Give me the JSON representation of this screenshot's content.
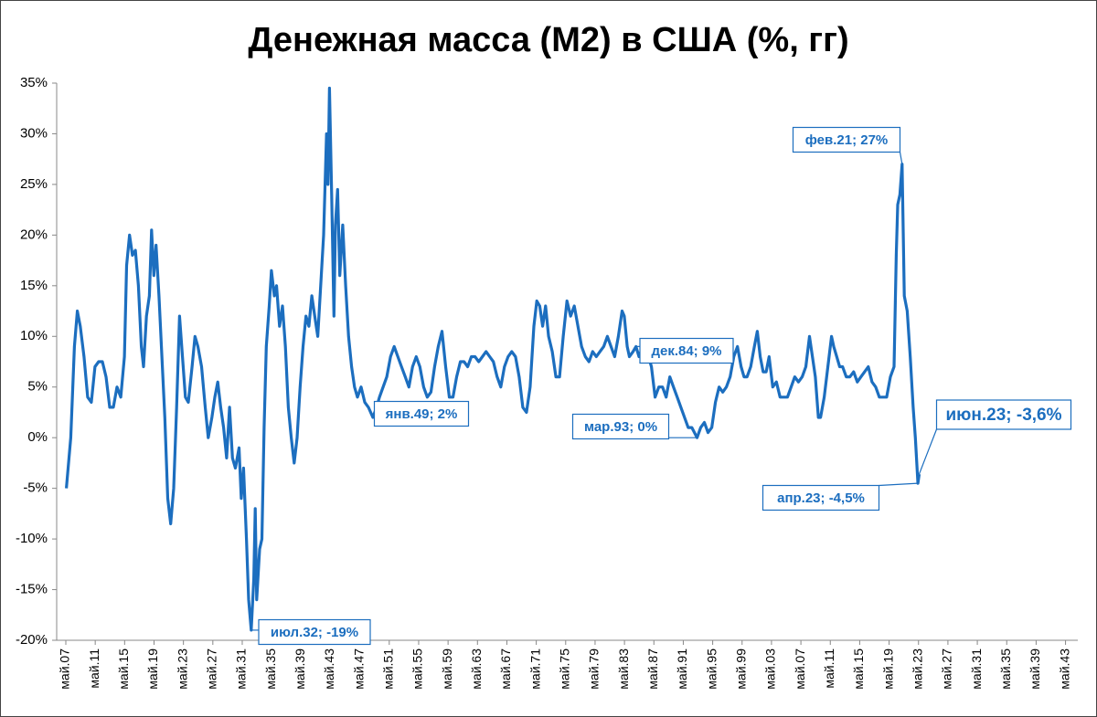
{
  "chart_data": {
    "type": "line",
    "title": "Денежная масса (М2) в США (%, гг)",
    "color": "#1c6ebf",
    "xlim": [
      1907.33,
      2045
    ],
    "ylim": [
      -20,
      35
    ],
    "yticks": [
      {
        "value": 35,
        "label": "35%"
      },
      {
        "value": 30,
        "label": "30%"
      },
      {
        "value": 25,
        "label": "25%"
      },
      {
        "value": 20,
        "label": "20%"
      },
      {
        "value": 15,
        "label": "15%"
      },
      {
        "value": 10,
        "label": "10%"
      },
      {
        "value": 5,
        "label": "5%"
      },
      {
        "value": 0,
        "label": "0%"
      },
      {
        "value": -5,
        "label": "-5%"
      },
      {
        "value": -10,
        "label": "-10%"
      },
      {
        "value": -15,
        "label": "-15%"
      },
      {
        "value": -20,
        "label": "-20%"
      }
    ],
    "xticks": [
      {
        "value": 1907.33,
        "label": "май.07"
      },
      {
        "value": 1911.33,
        "label": "май.11"
      },
      {
        "value": 1915.33,
        "label": "май.15"
      },
      {
        "value": 1919.33,
        "label": "май.19"
      },
      {
        "value": 1923.33,
        "label": "май.23"
      },
      {
        "value": 1927.33,
        "label": "май.27"
      },
      {
        "value": 1931.33,
        "label": "май.31"
      },
      {
        "value": 1935.33,
        "label": "май.35"
      },
      {
        "value": 1939.33,
        "label": "май.39"
      },
      {
        "value": 1943.33,
        "label": "май.43"
      },
      {
        "value": 1947.33,
        "label": "май.47"
      },
      {
        "value": 1951.33,
        "label": "май.51"
      },
      {
        "value": 1955.33,
        "label": "май.55"
      },
      {
        "value": 1959.33,
        "label": "май.59"
      },
      {
        "value": 1963.33,
        "label": "май.63"
      },
      {
        "value": 1967.33,
        "label": "май.67"
      },
      {
        "value": 1971.33,
        "label": "май.71"
      },
      {
        "value": 1975.33,
        "label": "май.75"
      },
      {
        "value": 1979.33,
        "label": "май.79"
      },
      {
        "value": 1983.33,
        "label": "май.83"
      },
      {
        "value": 1987.33,
        "label": "май.87"
      },
      {
        "value": 1991.33,
        "label": "май.91"
      },
      {
        "value": 1995.33,
        "label": "май.95"
      },
      {
        "value": 1999.33,
        "label": "май.99"
      },
      {
        "value": 2003.33,
        "label": "май.03"
      },
      {
        "value": 2007.33,
        "label": "май.07"
      },
      {
        "value": 2011.33,
        "label": "май.11"
      },
      {
        "value": 2015.33,
        "label": "май.15"
      },
      {
        "value": 2019.33,
        "label": "май.19"
      },
      {
        "value": 2023.33,
        "label": "май.23"
      },
      {
        "value": 2027.33,
        "label": "май.27"
      },
      {
        "value": 2031.33,
        "label": "май.31"
      },
      {
        "value": 2035.33,
        "label": "май.35"
      },
      {
        "value": 2039.33,
        "label": "май.39"
      },
      {
        "value": 2043.33,
        "label": "май.43"
      }
    ],
    "x": [
      1907.4,
      1908.0,
      1908.5,
      1908.9,
      1909.3,
      1909.8,
      1910.3,
      1910.8,
      1911.3,
      1911.8,
      1912.3,
      1912.8,
      1913.3,
      1913.8,
      1914.3,
      1914.8,
      1915.3,
      1915.6,
      1916.0,
      1916.4,
      1916.8,
      1917.2,
      1917.6,
      1917.9,
      1918.3,
      1918.7,
      1919.0,
      1919.3,
      1919.6,
      1920.0,
      1920.4,
      1920.8,
      1921.2,
      1921.6,
      1922.0,
      1922.4,
      1922.8,
      1923.2,
      1923.6,
      1924.0,
      1924.5,
      1924.9,
      1925.3,
      1925.8,
      1926.3,
      1926.7,
      1927.2,
      1927.6,
      1928.0,
      1928.4,
      1928.8,
      1929.2,
      1929.6,
      1930.0,
      1930.4,
      1930.9,
      1931.2,
      1931.5,
      1931.9,
      1932.2,
      1932.55,
      1932.9,
      1933.1,
      1933.3,
      1933.7,
      1934.0,
      1934.3,
      1934.6,
      1935.0,
      1935.3,
      1935.7,
      1936.0,
      1936.4,
      1936.8,
      1937.2,
      1937.6,
      1938.0,
      1938.4,
      1938.8,
      1939.2,
      1939.6,
      1940.0,
      1940.4,
      1940.8,
      1941.2,
      1941.6,
      1942.0,
      1942.4,
      1942.8,
      1943.0,
      1943.2,
      1943.5,
      1943.8,
      1944.0,
      1944.3,
      1944.6,
      1945.0,
      1945.4,
      1945.8,
      1946.2,
      1946.6,
      1947.0,
      1947.5,
      1948.0,
      1948.5,
      1949.1,
      1949.6,
      1950.0,
      1950.5,
      1951.0,
      1951.5,
      1952.0,
      1952.5,
      1953.0,
      1953.5,
      1954.0,
      1954.5,
      1955.0,
      1955.5,
      1956.0,
      1956.5,
      1957.0,
      1957.5,
      1958.0,
      1958.5,
      1959.0,
      1959.5,
      1960.0,
      1960.5,
      1961.0,
      1961.5,
      1962.0,
      1962.5,
      1963.0,
      1963.5,
      1964.0,
      1964.5,
      1965.0,
      1965.5,
      1966.0,
      1966.5,
      1967.0,
      1967.5,
      1968.0,
      1968.5,
      1969.0,
      1969.5,
      1970.0,
      1970.5,
      1971.0,
      1971.4,
      1971.8,
      1972.2,
      1972.6,
      1973.0,
      1973.5,
      1974.0,
      1974.5,
      1975.0,
      1975.5,
      1976.0,
      1976.5,
      1977.0,
      1977.5,
      1978.0,
      1978.5,
      1979.0,
      1979.5,
      1980.0,
      1980.5,
      1981.0,
      1981.5,
      1982.0,
      1982.5,
      1983.0,
      1983.3,
      1983.7,
      1984.0,
      1984.5,
      1984.9,
      1985.3,
      1985.8,
      1986.2,
      1986.6,
      1987.0,
      1987.5,
      1988.0,
      1988.5,
      1989.0,
      1989.5,
      1990.0,
      1990.5,
      1991.0,
      1991.5,
      1992.0,
      1992.5,
      1993.2,
      1993.7,
      1994.2,
      1994.7,
      1995.2,
      1995.7,
      1996.2,
      1996.7,
      1997.2,
      1997.7,
      1998.2,
      1998.7,
      1999.2,
      1999.6,
      2000.0,
      2000.5,
      2001.0,
      2001.4,
      2001.8,
      2002.2,
      2002.6,
      2003.0,
      2003.5,
      2004.0,
      2004.5,
      2005.0,
      2005.5,
      2006.0,
      2006.5,
      2007.0,
      2007.5,
      2008.0,
      2008.5,
      2008.9,
      2009.3,
      2009.7,
      2010.0,
      2010.5,
      2011.0,
      2011.5,
      2011.8,
      2012.2,
      2012.6,
      2013.0,
      2013.5,
      2014.0,
      2014.5,
      2015.0,
      2015.5,
      2016.0,
      2016.5,
      2017.0,
      2017.5,
      2018.0,
      2018.5,
      2019.0,
      2019.5,
      2020.0,
      2020.3,
      2020.5,
      2020.8,
      2021.1,
      2021.4,
      2021.8,
      2022.2,
      2022.6,
      2022.9,
      2023.25,
      2023.42
    ],
    "values": [
      -5,
      0,
      9,
      12.5,
      11,
      8,
      4,
      3.5,
      7,
      7.5,
      7.5,
      6,
      3,
      3,
      5,
      4,
      8,
      17,
      20,
      18,
      18.5,
      15,
      9,
      7,
      12,
      14,
      20.5,
      16,
      19,
      14,
      8,
      2,
      -6,
      -8.5,
      -5,
      3,
      12,
      8,
      4,
      3.5,
      7,
      10,
      9,
      7,
      3,
      0,
      2,
      4,
      5.5,
      3,
      1,
      -2,
      3,
      -2,
      -3,
      -1,
      -6,
      -3,
      -10,
      -16,
      -19,
      -14,
      -7,
      -16,
      -11,
      -10,
      1,
      9,
      13,
      16.5,
      14,
      15,
      11,
      13,
      9,
      3,
      0,
      -2.5,
      0,
      5,
      9,
      12,
      11,
      14,
      12,
      10,
      15,
      20,
      30,
      25,
      34.5,
      24,
      12,
      21,
      24.5,
      16,
      21,
      15,
      10,
      7,
      5,
      4,
      5,
      3.5,
      3,
      2,
      3,
      4,
      5,
      6,
      8,
      9,
      8,
      7,
      6,
      5,
      7,
      8,
      7,
      5,
      4,
      4.5,
      7,
      9,
      10.5,
      7,
      4,
      4,
      6,
      7.5,
      7.5,
      7,
      8,
      8,
      7.5,
      8,
      8.5,
      8,
      7.5,
      6,
      5,
      7,
      8,
      8.5,
      8,
      6,
      3,
      2.5,
      5,
      11,
      13.5,
      13,
      11,
      13,
      10,
      8.5,
      6,
      6,
      10,
      13.5,
      12,
      13,
      11,
      9,
      8,
      7.5,
      8.5,
      8,
      8.5,
      9,
      10,
      9,
      8,
      10,
      12.5,
      12,
      9,
      8,
      8.5,
      9,
      8,
      9,
      9,
      8,
      7,
      4,
      5,
      5,
      4,
      6,
      5,
      4,
      3,
      2,
      1,
      1,
      0,
      1,
      1.5,
      0.5,
      1,
      3.5,
      5,
      4.5,
      5,
      6,
      8,
      9,
      7,
      6,
      6,
      7,
      9,
      10.5,
      8,
      6.5,
      6.5,
      8,
      5,
      5.5,
      4,
      4,
      4,
      5,
      6,
      5.5,
      6,
      7,
      10,
      8,
      6,
      2,
      2,
      4,
      7,
      10,
      9,
      8,
      7,
      7,
      6,
      6,
      6.5,
      5.5,
      6,
      6.5,
      7,
      5.5,
      5,
      4,
      4,
      4,
      6,
      7,
      18,
      23,
      24,
      27,
      14,
      12.5,
      8,
      3,
      0,
      -4.5,
      -3.6
    ],
    "annotations": [
      {
        "text": "июл.32; -19%",
        "x": 1932.55,
        "y": -19
      },
      {
        "text": "янв.49; 2%",
        "x": 1949.1,
        "y": 2
      },
      {
        "text": "мар.93; 0%",
        "x": 1993.2,
        "y": 0
      },
      {
        "text": "дек.84; 9%",
        "x": 1984.9,
        "y": 9
      },
      {
        "text": "фев.21; 27%",
        "x": 2021.1,
        "y": 27
      },
      {
        "text": "апр.23; -4,5%",
        "x": 2023.25,
        "y": -4.5
      },
      {
        "text": "июн.23; -3,6%",
        "x": 2023.42,
        "y": -3.6
      }
    ]
  }
}
